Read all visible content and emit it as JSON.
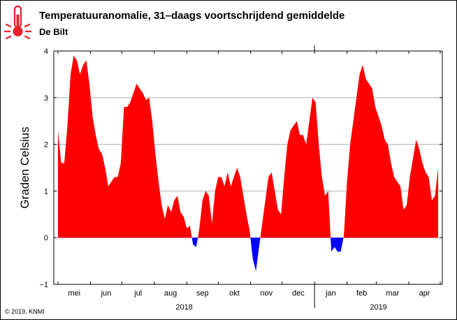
{
  "header": {
    "title": "Temperatuuranomalie, 31–daags voortschrijdend gemiddelde",
    "subtitle": "De Bilt",
    "icon": "thermometer-icon",
    "icon_color": "#e8202a"
  },
  "credit": "© 2019, KNMI",
  "chart_data": {
    "type": "area",
    "ylabel": "Graden Celsius",
    "ylim": [
      -1,
      4
    ],
    "yticks": [
      "−1",
      "0",
      "1",
      "2",
      "3",
      "4"
    ],
    "grid": true,
    "positive_color": "#ff0000",
    "negative_color": "#0000ff",
    "months": [
      "mei",
      "jun",
      "jul",
      "aug",
      "sep",
      "okt",
      "nov",
      "dec",
      "jan",
      "feb",
      "mar",
      "apr"
    ],
    "years": [
      "2018",
      "2019"
    ],
    "x": [
      "2018-05-01",
      "2018-05-04",
      "2018-05-07",
      "2018-05-10",
      "2018-05-13",
      "2018-05-16",
      "2018-05-19",
      "2018-05-22",
      "2018-05-25",
      "2018-05-28",
      "2018-05-31",
      "2018-06-03",
      "2018-06-06",
      "2018-06-09",
      "2018-06-12",
      "2018-06-15",
      "2018-06-18",
      "2018-06-21",
      "2018-06-24",
      "2018-06-27",
      "2018-06-30",
      "2018-07-03",
      "2018-07-06",
      "2018-07-09",
      "2018-07-12",
      "2018-07-15",
      "2018-07-18",
      "2018-07-21",
      "2018-07-24",
      "2018-07-27",
      "2018-07-30",
      "2018-08-02",
      "2018-08-05",
      "2018-08-08",
      "2018-08-11",
      "2018-08-14",
      "2018-08-17",
      "2018-08-20",
      "2018-08-23",
      "2018-08-26",
      "2018-08-29",
      "2018-09-01",
      "2018-09-04",
      "2018-09-07",
      "2018-09-10",
      "2018-09-13",
      "2018-09-16",
      "2018-09-19",
      "2018-09-22",
      "2018-09-25",
      "2018-09-28",
      "2018-10-01",
      "2018-10-04",
      "2018-10-07",
      "2018-10-10",
      "2018-10-13",
      "2018-10-16",
      "2018-10-19",
      "2018-10-22",
      "2018-10-25",
      "2018-10-28",
      "2018-10-31",
      "2018-11-03",
      "2018-11-06",
      "2018-11-09",
      "2018-11-12",
      "2018-11-15",
      "2018-11-18",
      "2018-11-21",
      "2018-11-24",
      "2018-11-27",
      "2018-11-30",
      "2018-12-03",
      "2018-12-06",
      "2018-12-09",
      "2018-12-12",
      "2018-12-15",
      "2018-12-18",
      "2018-12-21",
      "2018-12-24",
      "2018-12-27",
      "2018-12-30",
      "2019-01-02",
      "2019-01-05",
      "2019-01-08",
      "2019-01-11",
      "2019-01-14",
      "2019-01-17",
      "2019-01-20",
      "2019-01-23",
      "2019-01-26",
      "2019-01-29",
      "2019-02-01",
      "2019-02-04",
      "2019-02-07",
      "2019-02-10",
      "2019-02-13",
      "2019-02-16",
      "2019-02-19",
      "2019-02-22",
      "2019-02-25",
      "2019-02-28",
      "2019-03-03",
      "2019-03-06",
      "2019-03-09",
      "2019-03-12",
      "2019-03-15",
      "2019-03-18",
      "2019-03-21",
      "2019-03-24",
      "2019-03-27",
      "2019-03-30",
      "2019-04-02",
      "2019-04-05",
      "2019-04-08",
      "2019-04-11",
      "2019-04-14",
      "2019-04-17",
      "2019-04-20",
      "2019-04-23",
      "2019-04-26",
      "2019-04-29"
    ],
    "values": [
      2.3,
      1.6,
      1.6,
      2.4,
      3.5,
      3.9,
      3.8,
      3.5,
      3.7,
      3.8,
      3.3,
      2.6,
      2.2,
      1.9,
      1.8,
      1.5,
      1.1,
      1.2,
      1.3,
      1.3,
      1.6,
      2.8,
      2.8,
      2.9,
      3.1,
      3.3,
      3.2,
      3.1,
      2.95,
      3.0,
      2.5,
      1.8,
      1.2,
      0.7,
      0.4,
      0.7,
      0.55,
      0.8,
      0.9,
      0.55,
      0.45,
      0.2,
      0.25,
      -0.15,
      -0.2,
      0.2,
      0.8,
      1.0,
      0.9,
      0.3,
      1.0,
      1.3,
      1.3,
      1.1,
      1.4,
      1.1,
      1.3,
      1.5,
      1.3,
      0.9,
      0.5,
      0.15,
      -0.45,
      -0.72,
      -0.2,
      0.3,
      0.8,
      1.3,
      1.4,
      1.0,
      0.6,
      0.5,
      1.3,
      2.0,
      2.3,
      2.4,
      2.5,
      2.2,
      2.2,
      2.0,
      2.5,
      3.0,
      2.9,
      2.0,
      1.3,
      0.9,
      1.0,
      -0.3,
      -0.2,
      -0.3,
      -0.3,
      0.05,
      1.2,
      2.0,
      2.5,
      3.0,
      3.5,
      3.7,
      3.4,
      3.3,
      3.2,
      2.8,
      2.6,
      2.4,
      2.1,
      2.0,
      1.6,
      1.3,
      1.2,
      1.1,
      0.6,
      0.7,
      1.3,
      1.7,
      2.1,
      1.9,
      1.6,
      1.4,
      1.3,
      0.8,
      0.9,
      1.5
    ]
  }
}
